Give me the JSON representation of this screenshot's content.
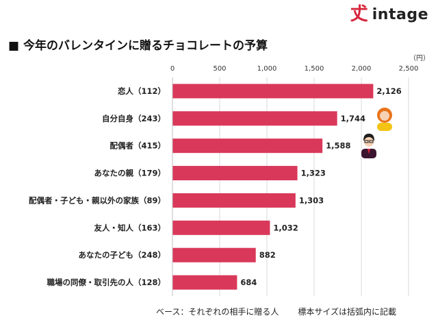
{
  "brand": {
    "mark": "𠀋",
    "name": "intage"
  },
  "title": "■ 今年のバレンタインに贈るチョコレートの予算",
  "footer": {
    "base": "ベース：それぞれの相手に贈る人",
    "note": "標本サイズは括弧内に記載"
  },
  "colors": {
    "bar": "#d9385a",
    "accent": "#d7263d"
  },
  "chart_data": {
    "type": "bar",
    "orientation": "horizontal",
    "unit_label": "（円）",
    "xlim": [
      0,
      2500
    ],
    "ticks": [
      0,
      500,
      1000,
      1500,
      2000,
      2500
    ],
    "tick_labels": [
      "0",
      "500",
      "1,000",
      "1,500",
      "2,000",
      "2,500"
    ],
    "grid": true,
    "categories": [
      "恋人（112）",
      "自分自身（243）",
      "配偶者（415）",
      "あなたの親（179）",
      "配偶者・子ども・親以外の家族（89）",
      "友人・知人（163）",
      "あなたの子ども（248）",
      "職場の同僚・取引先の人（128）"
    ],
    "values": [
      2126,
      1744,
      1588,
      1323,
      1303,
      1032,
      882,
      684
    ],
    "value_labels": [
      "2,126",
      "1,744",
      "1,588",
      "1,323",
      "1,303",
      "1,032",
      "882",
      "684"
    ]
  }
}
